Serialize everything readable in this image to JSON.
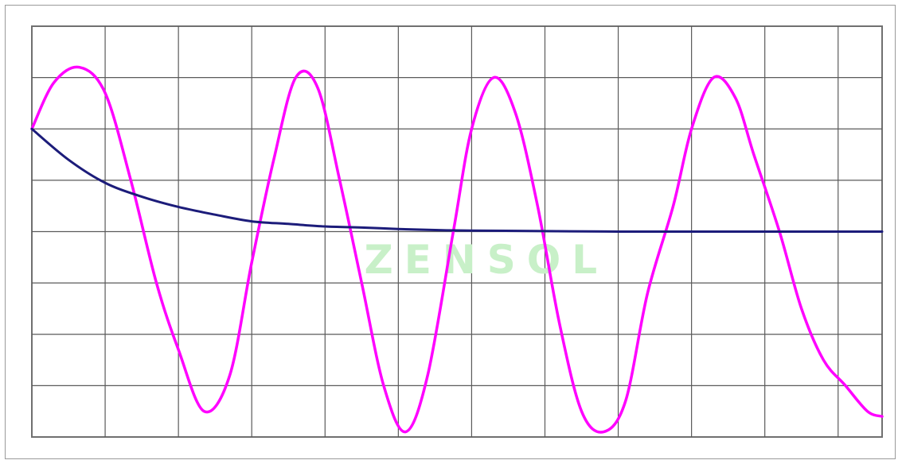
{
  "chart_data": {
    "type": "line",
    "grid": true,
    "xlim": [
      0,
      11.6
    ],
    "ylim": [
      -4,
      4
    ],
    "x_gridlines": [
      1,
      2,
      3,
      4,
      5,
      6,
      7,
      8,
      9,
      10,
      11
    ],
    "y_gridlines": [
      -3,
      -2,
      -1,
      0,
      1,
      2,
      3
    ],
    "series": [
      {
        "color": "#ff00ff",
        "x": [
          0,
          0.3,
          0.65,
          1.0,
          1.35,
          1.7,
          2.0,
          2.35,
          2.7,
          3.0,
          3.3,
          3.6,
          3.9,
          4.2,
          4.5,
          4.8,
          5.1,
          5.4,
          5.75,
          6.0,
          6.3,
          6.6,
          6.9,
          7.2,
          7.5,
          7.8,
          8.1,
          8.4,
          8.75,
          9.0,
          9.3,
          9.6,
          9.85,
          10.2,
          10.5,
          10.8,
          11.1,
          11.4,
          11.6
        ],
        "y": [
          2.0,
          2.9,
          3.2,
          2.7,
          1.0,
          -1.0,
          -2.3,
          -3.5,
          -2.8,
          -0.6,
          1.4,
          3.0,
          2.8,
          1.0,
          -1.0,
          -3.0,
          -3.9,
          -2.8,
          0.0,
          2.0,
          3.0,
          2.3,
          0.5,
          -1.8,
          -3.5,
          -3.9,
          -3.3,
          -1.2,
          0.5,
          2.0,
          3.0,
          2.6,
          1.5,
          0.0,
          -1.5,
          -2.5,
          -3.0,
          -3.5,
          -3.6
        ]
      },
      {
        "color": "#1c1c7a",
        "x": [
          0,
          0.5,
          1.0,
          1.5,
          2.0,
          2.5,
          3.0,
          3.5,
          4.0,
          4.5,
          5.0,
          5.5,
          6.0,
          7.0,
          8.0,
          9.0,
          10.0,
          11.0,
          11.6
        ],
        "y": [
          2.0,
          1.4,
          0.95,
          0.68,
          0.48,
          0.33,
          0.2,
          0.15,
          0.1,
          0.08,
          0.05,
          0.03,
          0.02,
          0.01,
          0.0,
          0.0,
          0.0,
          0.0,
          0.0
        ]
      }
    ]
  },
  "watermark": {
    "text": "ZENSOL",
    "color": "#c8f0c8",
    "x": 6.2,
    "y": -0.6
  }
}
